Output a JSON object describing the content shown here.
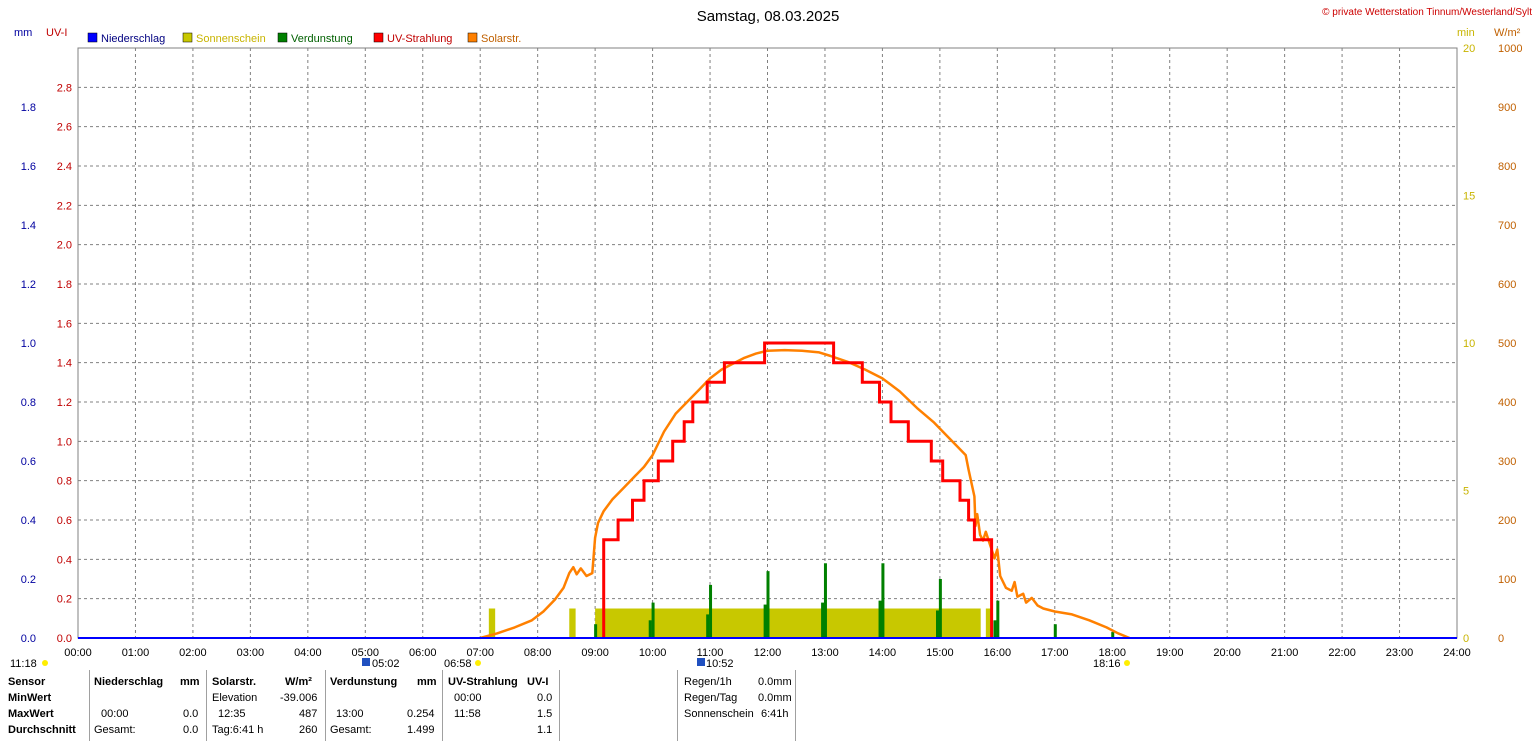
{
  "title": "Samstag, 08.03.2025",
  "copyright": "© private Wetterstation Tinnum/Westerland/Sylt",
  "colors": {
    "niederschlag": "#0000ff",
    "sonnenschein": "#c8c800",
    "verdunstung": "#008000",
    "uv": "#ff0000",
    "solar": "#ff8000",
    "grid": "#808080",
    "axis_mm": "#0000a0",
    "axis_uv": "#c00000",
    "axis_min": "#c8b400",
    "axis_wm2": "#c06000"
  },
  "axis_units": {
    "mm": "mm",
    "uv": "UV-I",
    "min": "min",
    "wm2": "W/m²"
  },
  "legend": [
    "Niederschlag",
    "Sonnenschein",
    "Verdunstung",
    "UV-Strahlung",
    "Solarstr."
  ],
  "sun_events": {
    "moonset": "11:18",
    "moon_marker": "05:02",
    "sunrise": "06:58",
    "noon_marker": "10:52",
    "sunset": "18:16"
  },
  "chart_data": {
    "type": "line",
    "title": "Samstag, 08.03.2025",
    "x_ticks": [
      "00:00",
      "01:00",
      "02:00",
      "03:00",
      "04:00",
      "05:00",
      "06:00",
      "07:00",
      "08:00",
      "09:00",
      "10:00",
      "11:00",
      "12:00",
      "13:00",
      "14:00",
      "15:00",
      "16:00",
      "17:00",
      "18:00",
      "19:00",
      "20:00",
      "21:00",
      "22:00",
      "23:00",
      "24:00"
    ],
    "axes": {
      "mm": {
        "range": [
          0,
          2.0
        ],
        "ticks": [
          "0.0",
          "0.2",
          "0.4",
          "0.6",
          "0.8",
          "1.0",
          "1.2",
          "1.4",
          "1.6",
          "1.8"
        ]
      },
      "uv": {
        "range": [
          0,
          3.0
        ],
        "ticks": [
          "0.0",
          "0.2",
          "0.4",
          "0.6",
          "0.8",
          "1.0",
          "1.2",
          "1.4",
          "1.6",
          "1.8",
          "2.0",
          "2.2",
          "2.4",
          "2.6",
          "2.8"
        ]
      },
      "min": {
        "range": [
          0,
          20
        ],
        "ticks": [
          "0",
          "5",
          "10",
          "15",
          "20"
        ]
      },
      "wm2": {
        "range": [
          0,
          1000
        ],
        "ticks": [
          "0",
          "100",
          "200",
          "300",
          "400",
          "500",
          "600",
          "700",
          "800",
          "900",
          "1000"
        ]
      }
    },
    "grid": true,
    "series": [
      {
        "name": "Solarstr.",
        "axis": "wm2",
        "points": [
          [
            7.0,
            0
          ],
          [
            7.3,
            8
          ],
          [
            7.6,
            18
          ],
          [
            7.9,
            30
          ],
          [
            8.1,
            45
          ],
          [
            8.3,
            65
          ],
          [
            8.45,
            85
          ],
          [
            8.55,
            110
          ],
          [
            8.62,
            120
          ],
          [
            8.68,
            108
          ],
          [
            8.75,
            118
          ],
          [
            8.85,
            105
          ],
          [
            8.95,
            110
          ],
          [
            9.0,
            170
          ],
          [
            9.05,
            195
          ],
          [
            9.15,
            215
          ],
          [
            9.3,
            235
          ],
          [
            9.5,
            255
          ],
          [
            9.7,
            275
          ],
          [
            9.85,
            290
          ],
          [
            10.0,
            310
          ],
          [
            10.2,
            350
          ],
          [
            10.4,
            380
          ],
          [
            10.6,
            400
          ],
          [
            10.8,
            420
          ],
          [
            11.0,
            440
          ],
          [
            11.2,
            455
          ],
          [
            11.4,
            465
          ],
          [
            11.6,
            475
          ],
          [
            11.8,
            482
          ],
          [
            12.0,
            487
          ],
          [
            12.3,
            488
          ],
          [
            12.6,
            487
          ],
          [
            12.9,
            484
          ],
          [
            13.1,
            478
          ],
          [
            13.4,
            468
          ],
          [
            13.7,
            455
          ],
          [
            14.0,
            440
          ],
          [
            14.3,
            418
          ],
          [
            14.6,
            390
          ],
          [
            14.9,
            365
          ],
          [
            15.1,
            345
          ],
          [
            15.3,
            325
          ],
          [
            15.45,
            310
          ],
          [
            15.5,
            285
          ],
          [
            15.6,
            240
          ],
          [
            15.62,
            190
          ],
          [
            15.65,
            210
          ],
          [
            15.7,
            175
          ],
          [
            15.75,
            165
          ],
          [
            15.8,
            180
          ],
          [
            15.9,
            150
          ],
          [
            15.95,
            135
          ],
          [
            16.0,
            150
          ],
          [
            16.05,
            105
          ],
          [
            16.15,
            85
          ],
          [
            16.25,
            80
          ],
          [
            16.3,
            95
          ],
          [
            16.35,
            70
          ],
          [
            16.45,
            75
          ],
          [
            16.5,
            60
          ],
          [
            16.6,
            68
          ],
          [
            16.7,
            55
          ],
          [
            16.8,
            50
          ],
          [
            17.0,
            45
          ],
          [
            17.3,
            40
          ],
          [
            17.6,
            30
          ],
          [
            17.9,
            18
          ],
          [
            18.1,
            8
          ],
          [
            18.3,
            0
          ]
        ]
      },
      {
        "name": "UV-Strahlung",
        "axis": "uv",
        "points": [
          [
            9.15,
            0
          ],
          [
            9.15,
            0.5
          ],
          [
            9.4,
            0.5
          ],
          [
            9.4,
            0.6
          ],
          [
            9.65,
            0.6
          ],
          [
            9.65,
            0.7
          ],
          [
            9.85,
            0.7
          ],
          [
            9.85,
            0.8
          ],
          [
            10.1,
            0.8
          ],
          [
            10.1,
            0.9
          ],
          [
            10.35,
            0.9
          ],
          [
            10.35,
            1.0
          ],
          [
            10.55,
            1.0
          ],
          [
            10.55,
            1.1
          ],
          [
            10.7,
            1.1
          ],
          [
            10.7,
            1.2
          ],
          [
            10.95,
            1.2
          ],
          [
            10.95,
            1.3
          ],
          [
            11.25,
            1.3
          ],
          [
            11.25,
            1.4
          ],
          [
            11.95,
            1.4
          ],
          [
            11.95,
            1.5
          ],
          [
            13.15,
            1.5
          ],
          [
            13.15,
            1.4
          ],
          [
            13.65,
            1.4
          ],
          [
            13.65,
            1.3
          ],
          [
            13.95,
            1.3
          ],
          [
            13.95,
            1.2
          ],
          [
            14.15,
            1.2
          ],
          [
            14.15,
            1.1
          ],
          [
            14.45,
            1.1
          ],
          [
            14.45,
            1.0
          ],
          [
            14.85,
            1.0
          ],
          [
            14.85,
            0.9
          ],
          [
            15.05,
            0.9
          ],
          [
            15.05,
            0.8
          ],
          [
            15.35,
            0.8
          ],
          [
            15.35,
            0.7
          ],
          [
            15.5,
            0.7
          ],
          [
            15.5,
            0.6
          ],
          [
            15.6,
            0.6
          ],
          [
            15.6,
            0.5
          ],
          [
            15.9,
            0.5
          ],
          [
            15.9,
            0.0
          ]
        ]
      },
      {
        "name": "Sonnenschein",
        "axis": "min",
        "bars": [
          [
            7.15,
            1.0
          ],
          [
            8.55,
            1.0
          ],
          [
            9.0,
            1.0
          ],
          [
            9.1,
            1.0
          ],
          [
            9.2,
            1.0
          ],
          [
            9.3,
            1.0
          ],
          [
            9.4,
            1.0
          ],
          [
            9.5,
            1.0
          ],
          [
            9.6,
            1.0
          ],
          [
            9.7,
            1.0
          ],
          [
            9.8,
            1.0
          ],
          [
            9.9,
            1.0
          ],
          [
            10.0,
            1.0
          ],
          [
            10.1,
            1.0
          ],
          [
            10.2,
            1.0
          ],
          [
            10.3,
            1.0
          ],
          [
            10.4,
            1.0
          ],
          [
            10.5,
            1.0
          ],
          [
            10.6,
            1.0
          ],
          [
            10.7,
            1.0
          ],
          [
            10.8,
            1.0
          ],
          [
            10.9,
            1.0
          ],
          [
            11.0,
            1.0
          ],
          [
            11.1,
            1.0
          ],
          [
            11.2,
            1.0
          ],
          [
            11.3,
            1.0
          ],
          [
            11.4,
            1.0
          ],
          [
            11.5,
            1.0
          ],
          [
            11.6,
            1.0
          ],
          [
            11.7,
            1.0
          ],
          [
            11.8,
            1.0
          ],
          [
            11.9,
            1.0
          ],
          [
            12.0,
            1.0
          ],
          [
            12.1,
            1.0
          ],
          [
            12.2,
            1.0
          ],
          [
            12.3,
            1.0
          ],
          [
            12.4,
            1.0
          ],
          [
            12.5,
            1.0
          ],
          [
            12.6,
            1.0
          ],
          [
            12.7,
            1.0
          ],
          [
            12.8,
            1.0
          ],
          [
            12.9,
            1.0
          ],
          [
            13.0,
            1.0
          ],
          [
            13.1,
            1.0
          ],
          [
            13.2,
            1.0
          ],
          [
            13.3,
            1.0
          ],
          [
            13.4,
            1.0
          ],
          [
            13.5,
            1.0
          ],
          [
            13.6,
            1.0
          ],
          [
            13.7,
            1.0
          ],
          [
            13.8,
            1.0
          ],
          [
            13.9,
            1.0
          ],
          [
            14.0,
            1.0
          ],
          [
            14.1,
            1.0
          ],
          [
            14.2,
            1.0
          ],
          [
            14.3,
            1.0
          ],
          [
            14.4,
            1.0
          ],
          [
            14.5,
            1.0
          ],
          [
            14.6,
            1.0
          ],
          [
            14.7,
            1.0
          ],
          [
            14.8,
            1.0
          ],
          [
            14.9,
            1.0
          ],
          [
            15.0,
            1.0
          ],
          [
            15.1,
            1.0
          ],
          [
            15.2,
            1.0
          ],
          [
            15.3,
            1.0
          ],
          [
            15.4,
            1.0
          ],
          [
            15.5,
            1.0
          ],
          [
            15.6,
            1.0
          ],
          [
            15.8,
            1.0
          ]
        ]
      },
      {
        "name": "Verdunstung",
        "axis": "uv",
        "bars": [
          [
            9.0,
            0.07
          ],
          [
            10.0,
            0.18
          ],
          [
            11.0,
            0.27
          ],
          [
            12.0,
            0.34
          ],
          [
            13.0,
            0.38
          ],
          [
            14.0,
            0.38
          ],
          [
            15.0,
            0.3
          ],
          [
            16.0,
            0.19
          ],
          [
            17.0,
            0.07
          ],
          [
            18.0,
            0.03
          ],
          [
            9.95,
            0.09
          ],
          [
            10.95,
            0.12
          ],
          [
            11.95,
            0.17
          ],
          [
            12.95,
            0.18
          ],
          [
            13.95,
            0.19
          ],
          [
            14.95,
            0.14
          ],
          [
            15.95,
            0.09
          ]
        ]
      }
    ]
  },
  "stats": {
    "rows": [
      "Sensor",
      "MinWert",
      "MaxWert",
      "Durchschnitt"
    ],
    "niederschlag": {
      "header": "Niederschlag",
      "unit": "mm",
      "max_time": "00:00",
      "max_val": "0.0",
      "avg_label": "Gesamt:",
      "avg_val": "0.0"
    },
    "solar": {
      "header": "Solarstr.",
      "unit": "W/m²",
      "min_label": "Elevation",
      "min_val": "-39.006",
      "max_time": "12:35",
      "max_val": "487",
      "avg_label": "Tag:6:41 h",
      "avg_val": "260"
    },
    "verdunstung": {
      "header": "Verdunstung",
      "unit": "mm",
      "max_time": "13:00",
      "max_val": "0.254",
      "avg_label": "Gesamt:",
      "avg_val": "1.499"
    },
    "uv": {
      "header": "UV-Strahlung",
      "unit": "UV-I",
      "min_time": "00:00",
      "min_val": "0.0",
      "max_time": "11:58",
      "max_val": "1.5",
      "avg_val": "1.1"
    },
    "summary": [
      {
        "label": "Regen/1h",
        "value": "0.0mm"
      },
      {
        "label": "Regen/Tag",
        "value": "0.0mm"
      },
      {
        "label": "Sonnenschein",
        "value": "6:41h"
      }
    ]
  }
}
